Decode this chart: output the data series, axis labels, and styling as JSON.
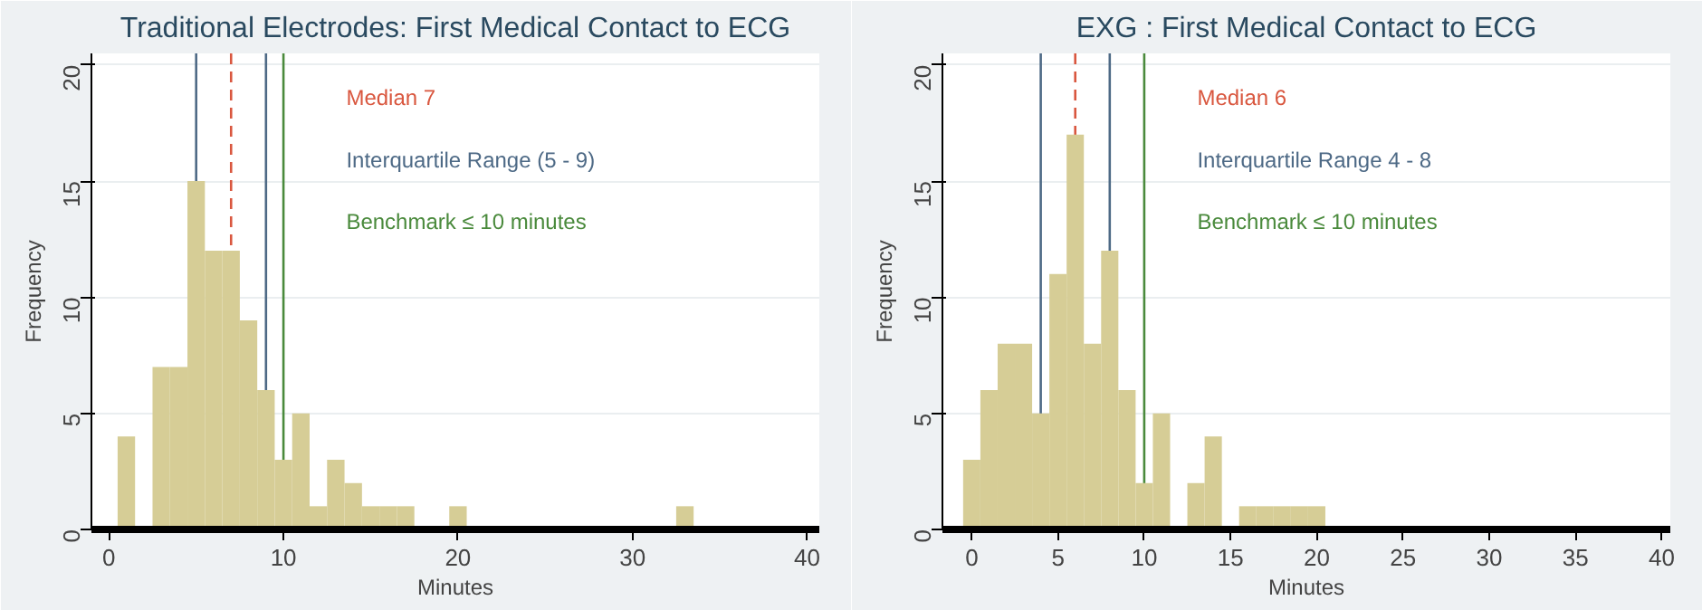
{
  "chart_data": [
    {
      "type": "histogram",
      "title": "Traditional Electrodes: First Medical Contact to ECG",
      "xlabel": "Minutes",
      "ylabel": "Frequency",
      "bins": [
        0.5,
        1.5,
        2.5,
        3.5,
        4.5,
        5.5,
        6.5,
        7.5,
        8.5,
        9.5,
        10.5,
        11.5,
        12.5,
        13.5,
        14.5,
        15.5,
        16.5,
        17.5,
        18.5,
        19.5,
        20.5,
        21.5,
        22.5,
        23.5,
        24.5,
        25.5,
        26.5,
        27.5,
        28.5,
        29.5,
        30.5,
        31.5,
        32.5,
        33.5
      ],
      "values": [
        4,
        0,
        7,
        7,
        15,
        12,
        12,
        9,
        6,
        3,
        5,
        1,
        3,
        2,
        1,
        1,
        1,
        0,
        0,
        1,
        0,
        0,
        0,
        0,
        0,
        0,
        0,
        0,
        0,
        0,
        0,
        0,
        1
      ],
      "color": "#d6cd96",
      "xlim": [
        -1,
        40.7
      ],
      "ylim": [
        0,
        20.5
      ],
      "xticks": [
        0,
        10,
        20,
        30,
        40
      ],
      "yticks": [
        0,
        5,
        10,
        15,
        20
      ],
      "grid": "y",
      "ref_lines": [
        {
          "axis": "x",
          "value": 5,
          "color": "#4e6a86",
          "line_style": "solid"
        },
        {
          "axis": "x",
          "value": 7,
          "color": "#d9573f",
          "line_style": "dashed"
        },
        {
          "axis": "x",
          "value": 9,
          "color": "#4e6a86",
          "line_style": "solid"
        },
        {
          "axis": "x",
          "value": 10,
          "color": "#4a8a3c",
          "line_style": "solid"
        }
      ],
      "annotations": [
        "Median  7",
        "Interquartile Range  (5 - 9)",
        "Benchmark ≤ 10 minutes"
      ]
    },
    {
      "type": "histogram",
      "title": "EXG : First Medical Contact to ECG",
      "xlabel": "Minutes",
      "ylabel": "Frequency",
      "bins": [
        -0.5,
        0.5,
        1.5,
        2.5,
        3.5,
        4.5,
        5.5,
        6.5,
        7.5,
        8.5,
        9.5,
        10.5,
        11.5,
        12.5,
        13.5,
        14.5,
        15.5,
        16.5,
        17.5,
        18.5,
        19.5,
        20.5
      ],
      "values": [
        3,
        6,
        8,
        8,
        5,
        11,
        17,
        8,
        12,
        6,
        2,
        5,
        0,
        2,
        4,
        0,
        1,
        1,
        1,
        1,
        1
      ],
      "color": "#d6cd96",
      "xlim": [
        -1.7,
        40.5
      ],
      "ylim": [
        0,
        20.5
      ],
      "xticks": [
        0,
        5,
        10,
        15,
        20,
        25,
        30,
        35,
        40
      ],
      "yticks": [
        0,
        5,
        10,
        15,
        20
      ],
      "grid": "y",
      "ref_lines": [
        {
          "axis": "x",
          "value": 4,
          "color": "#4e6a86",
          "line_style": "solid"
        },
        {
          "axis": "x",
          "value": 6,
          "color": "#d9573f",
          "line_style": "dashed"
        },
        {
          "axis": "x",
          "value": 8,
          "color": "#4e6a86",
          "line_style": "solid"
        },
        {
          "axis": "x",
          "value": 10,
          "color": "#4a8a3c",
          "line_style": "solid"
        }
      ],
      "annotations": [
        "Median 6",
        "Interquartile Range 4 - 8",
        "Benchmark ≤ 10 minutes"
      ]
    }
  ]
}
